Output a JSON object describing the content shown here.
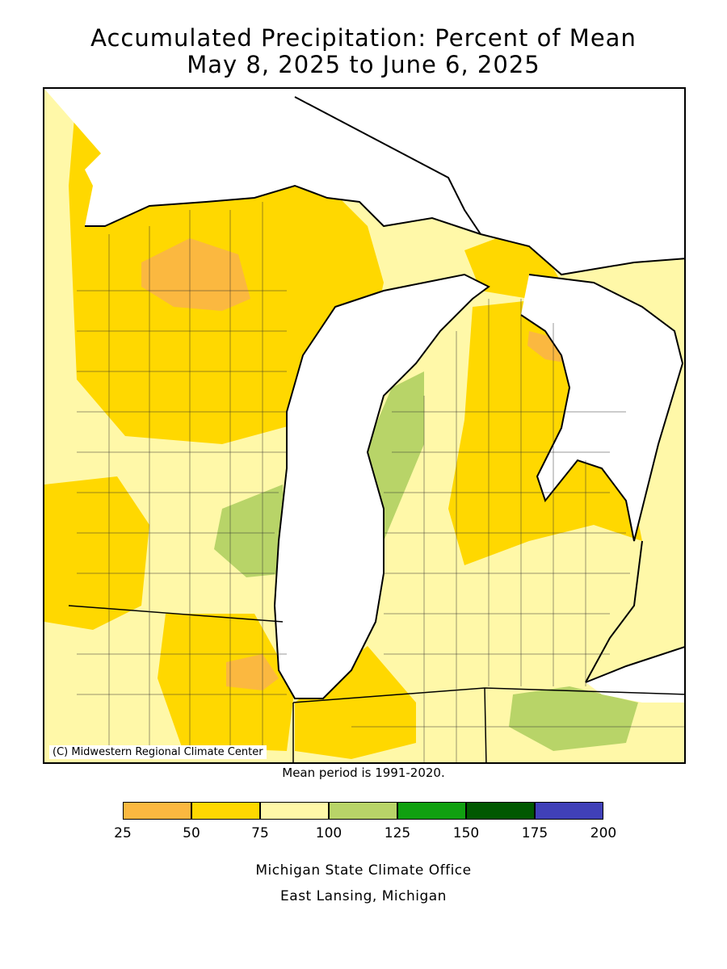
{
  "title_line1": "Accumulated Precipitation: Percent of Mean",
  "title_line2": "May 8, 2025 to June 6, 2025",
  "credit": "(C) Midwestern Regional Climate Center",
  "mean_period": "Mean period is 1991-2020.",
  "legend": {
    "bins": [
      {
        "range": "25-50",
        "color": "#fbb840"
      },
      {
        "range": "50-75",
        "color": "#ffd800"
      },
      {
        "range": "75-100",
        "color": "#fff8a8"
      },
      {
        "range": "100-125",
        "color": "#b8d468"
      },
      {
        "range": "125-150",
        "color": "#10a010"
      },
      {
        "range": "150-175",
        "color": "#005800"
      },
      {
        "range": "175-200",
        "color": "#4040b8"
      }
    ],
    "ticks": [
      "25",
      "50",
      "75",
      "100",
      "125",
      "150",
      "175",
      "200"
    ]
  },
  "footer_line1": "Michigan State Climate Office",
  "footer_line2": "East Lansing, Michigan"
}
